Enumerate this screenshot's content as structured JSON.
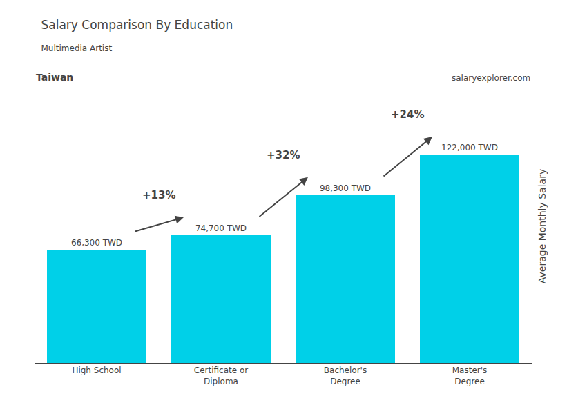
{
  "chart_data": {
    "type": "bar",
    "title": "Salary Comparison By Education",
    "subtitle": "Multimedia Artist",
    "categories": [
      "High School",
      "Certificate or\nDiploma",
      "Bachelor's\nDegree",
      "Master's\nDegree"
    ],
    "values": [
      66300,
      74700,
      98300,
      122000
    ],
    "value_labels": [
      "66,300 TWD",
      "74,700 TWD",
      "98,300 TWD",
      "122,000 TWD"
    ],
    "data_labels": true,
    "color": "#00d0e8",
    "ylabel": "Average Monthly Salary",
    "ylim": [
      0,
      160000
    ],
    "tick_labels": "x",
    "grid": false,
    "annotations": [
      {
        "text": "Taiwan"
      },
      {
        "text": "salaryexplorer.com"
      },
      {
        "text": "+13%",
        "from": "High School",
        "to": "Certificate or\nDiploma"
      },
      {
        "text": "+32%",
        "from": "Certificate or\nDiploma",
        "to": "Bachelor's\nDegree"
      },
      {
        "text": "+24%",
        "from": "Bachelor's\nDegree",
        "to": "Master's\nDegree"
      }
    ]
  }
}
